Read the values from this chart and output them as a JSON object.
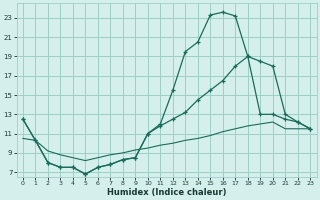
{
  "xlabel": "Humidex (Indice chaleur)",
  "bg_color": "#d5f0ec",
  "grid_color": "#9ecfc7",
  "line_color": "#1a6b5a",
  "xlim": [
    -0.5,
    23.5
  ],
  "ylim": [
    6.5,
    24.5
  ],
  "yticks": [
    7,
    9,
    11,
    13,
    15,
    17,
    19,
    21,
    23
  ],
  "xticks": [
    0,
    1,
    2,
    3,
    4,
    5,
    6,
    7,
    8,
    9,
    10,
    11,
    12,
    13,
    14,
    15,
    16,
    17,
    18,
    19,
    20,
    21,
    22,
    23
  ],
  "line1_x": [
    0,
    1,
    2,
    3,
    4,
    5,
    6,
    7,
    8,
    9,
    10,
    11,
    12,
    13,
    14,
    15,
    16,
    17,
    18,
    19,
    20,
    21,
    22,
    23
  ],
  "line1_y": [
    12.5,
    10.3,
    8.0,
    7.5,
    7.5,
    6.8,
    7.5,
    7.8,
    8.3,
    8.5,
    11.0,
    12.0,
    15.5,
    19.5,
    20.5,
    23.3,
    23.6,
    23.2,
    19.0,
    13.0,
    13.0,
    12.5,
    12.2,
    11.5
  ],
  "line2_x": [
    0,
    1,
    2,
    3,
    4,
    5,
    6,
    7,
    8,
    9,
    10,
    11,
    12,
    13,
    14,
    15,
    16,
    17,
    18,
    19,
    20,
    21,
    22,
    23
  ],
  "line2_y": [
    12.5,
    10.3,
    8.0,
    7.5,
    7.5,
    6.8,
    7.5,
    7.8,
    8.3,
    8.5,
    11.0,
    11.8,
    12.5,
    13.2,
    14.5,
    15.5,
    16.5,
    18.0,
    19.0,
    18.5,
    18.0,
    13.0,
    12.2,
    11.5
  ],
  "line3_x": [
    0,
    1,
    2,
    3,
    4,
    5,
    6,
    7,
    8,
    9,
    10,
    11,
    12,
    13,
    14,
    15,
    16,
    17,
    18,
    19,
    20,
    21,
    22,
    23
  ],
  "line3_y": [
    10.5,
    10.3,
    9.2,
    8.8,
    8.5,
    8.2,
    8.5,
    8.8,
    9.0,
    9.3,
    9.5,
    9.8,
    10.0,
    10.3,
    10.5,
    10.8,
    11.2,
    11.5,
    11.8,
    12.0,
    12.2,
    11.5,
    11.5,
    11.5
  ]
}
